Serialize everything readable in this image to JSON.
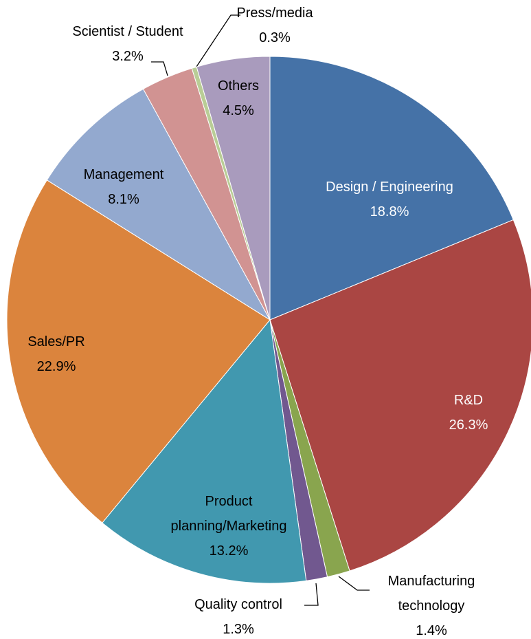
{
  "chart_data": {
    "type": "pie",
    "categories": [
      "Design / Engineering",
      "R&D",
      "Manufacturing technology",
      "Quality control",
      "Product planning/Marketing",
      "Sales/PR",
      "Management",
      "Scientist / Student",
      "Press/media",
      "Others"
    ],
    "values": [
      18.8,
      26.3,
      1.4,
      1.3,
      13.2,
      22.9,
      8.1,
      3.2,
      0.3,
      4.5
    ],
    "value_labels": [
      "18.8%",
      "26.3%",
      "1.4%",
      "1.3%",
      "13.2%",
      "22.9%",
      "8.1%",
      "3.2%",
      "0.3%",
      "4.5%"
    ],
    "colors": [
      "#4572a7",
      "#aa4643",
      "#89a54e",
      "#71588f",
      "#4198af",
      "#db843d",
      "#93a9cf",
      "#d19392",
      "#b9cd96",
      "#a99bbd"
    ]
  }
}
